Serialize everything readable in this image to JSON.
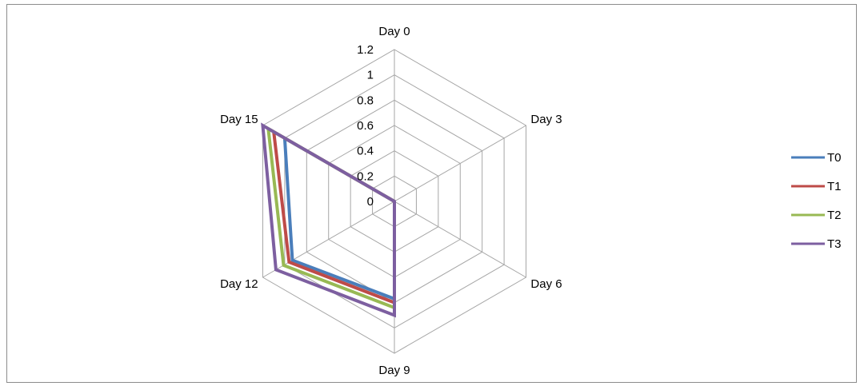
{
  "chart_data": {
    "type": "radar",
    "title": "",
    "categories": [
      "Day 0",
      "Day 3",
      "Day 6",
      "Day 9",
      "Day 12",
      "Day 15"
    ],
    "rlim": [
      0,
      1.2
    ],
    "ticks": [
      0,
      0.2,
      0.4,
      0.6,
      0.8,
      1,
      1.2
    ],
    "tick_labels": [
      "0",
      "0.2",
      "0.4",
      "0.6",
      "0.8",
      "1",
      "1.2"
    ],
    "grid": true,
    "legend_position": "right",
    "series": [
      {
        "name": "T0",
        "color": "#4a7ebb",
        "values": [
          0,
          0,
          0,
          0.77,
          0.93,
          1.0
        ]
      },
      {
        "name": "T1",
        "color": "#be4b48",
        "values": [
          0,
          0,
          0,
          0.8,
          0.96,
          1.1
        ]
      },
      {
        "name": "T2",
        "color": "#98b954",
        "values": [
          0,
          0,
          0,
          0.84,
          1.01,
          1.15
        ]
      },
      {
        "name": "T3",
        "color": "#7d5fa0",
        "values": [
          0,
          0,
          0,
          0.9,
          1.08,
          1.2
        ]
      }
    ]
  }
}
